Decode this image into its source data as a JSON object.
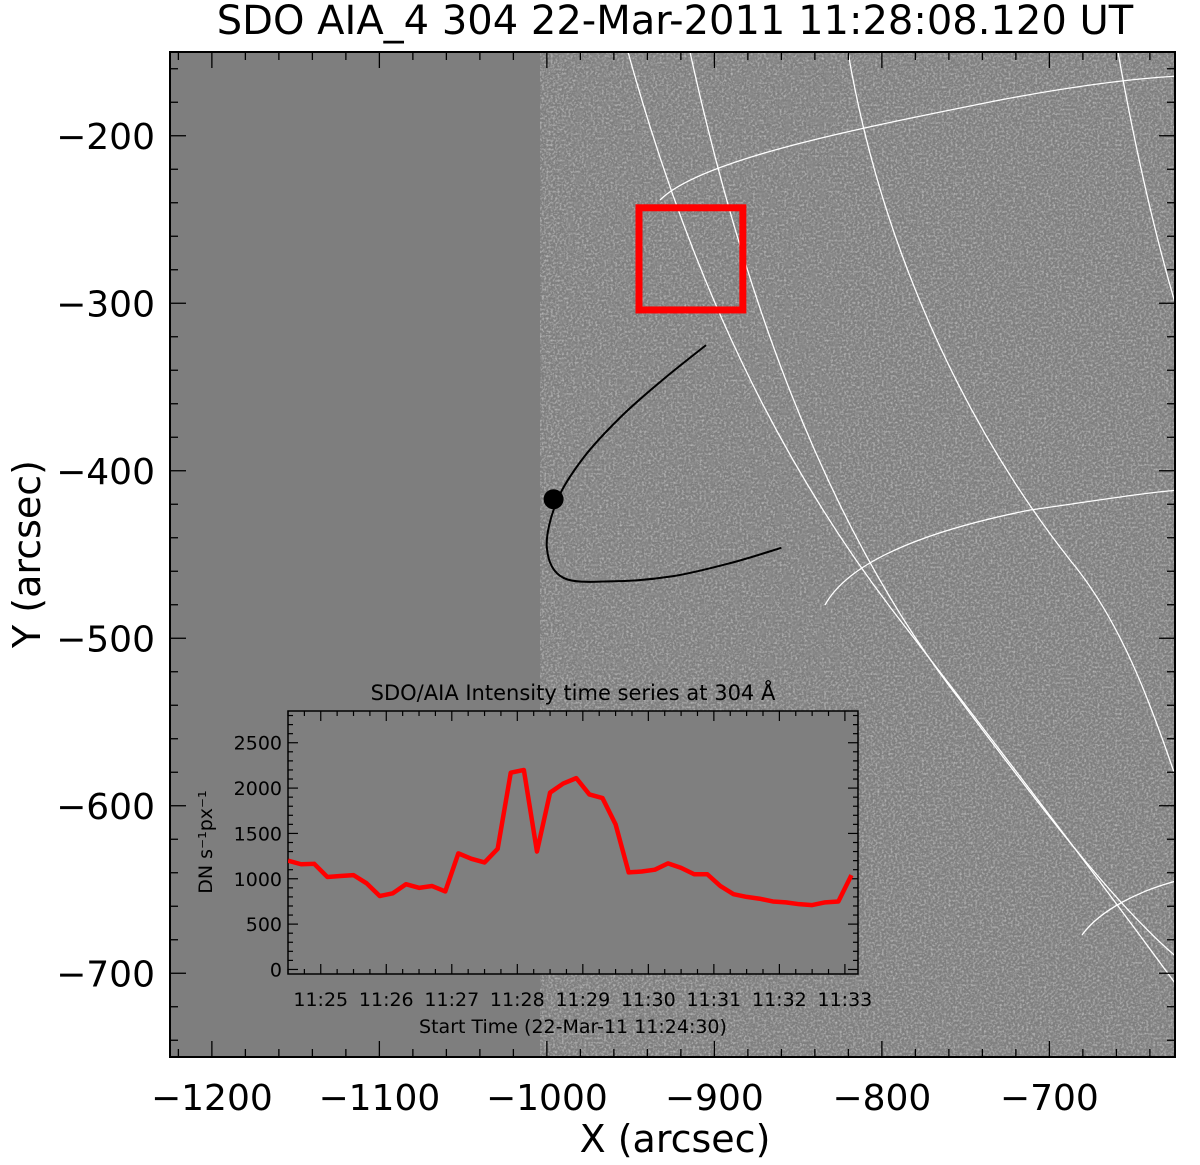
{
  "chart_data": [
    {
      "type": "heatmap",
      "title": "SDO AIA_4 304 22-Mar-2011 11:28:08.120 UT",
      "xlabel": "X (arcsec)",
      "ylabel": "Y (arcsec)",
      "xlim": [
        -1225,
        -625
      ],
      "ylim": [
        -750,
        -150
      ],
      "xticks": [
        -1200,
        -1100,
        -1000,
        -900,
        -800,
        -700
      ],
      "xtick_labels": [
        "−1200",
        "−1100",
        "−1000",
        "−900",
        "−800",
        "−700"
      ],
      "yticks": [
        -200,
        -300,
        -400,
        -500,
        -600,
        -700
      ],
      "ytick_labels": [
        "−200",
        "−300",
        "−400",
        "−500",
        "−600",
        "−700"
      ],
      "colormap": "grayscale difference image",
      "grid": "heliographic lat/lon lines (white)",
      "annotations": {
        "box": {
          "x0": -945,
          "x1": -883,
          "y0": -304,
          "y1": -243,
          "color": "#ff0000"
        },
        "trajectory": [
          [
            -905,
            -325
          ],
          [
            -930,
            -345
          ],
          [
            -955,
            -367
          ],
          [
            -978,
            -392
          ],
          [
            -994,
            -418
          ],
          [
            -1000,
            -446
          ],
          [
            -990,
            -464
          ],
          [
            -960,
            -466
          ],
          [
            -925,
            -463
          ],
          [
            -890,
            -455
          ],
          [
            -860,
            -446
          ]
        ],
        "marker": {
          "x": -996,
          "y": -417
        }
      }
    },
    {
      "type": "line",
      "title": "SDO/AIA Intensity time series at 304 Å",
      "xlabel": "Start Time (22-Mar-11 11:24:30)",
      "ylabel": "DN s⁻¹px⁻¹",
      "xtick_labels": [
        "11:25",
        "11:26",
        "11:27",
        "11:28",
        "11:29",
        "11:30",
        "11:31",
        "11:32",
        "11:33"
      ],
      "yticks": [
        0,
        500,
        1000,
        1500,
        2000,
        2500
      ],
      "ylim": [
        -50,
        2850
      ],
      "series": [
        {
          "color": "#ff0000",
          "x": [
            "11:24:30",
            "11:24:42",
            "11:24:54",
            "11:25:06",
            "11:25:18",
            "11:25:30",
            "11:25:42",
            "11:25:54",
            "11:26:06",
            "11:26:18",
            "11:26:30",
            "11:26:42",
            "11:26:54",
            "11:27:06",
            "11:27:18",
            "11:27:30",
            "11:27:42",
            "11:27:54",
            "11:28:06",
            "11:28:18",
            "11:28:30",
            "11:28:42",
            "11:28:54",
            "11:29:06",
            "11:29:18",
            "11:29:30",
            "11:29:42",
            "11:29:54",
            "11:30:06",
            "11:30:18",
            "11:30:30",
            "11:30:42",
            "11:30:54",
            "11:31:06",
            "11:31:18",
            "11:31:30",
            "11:31:42",
            "11:31:54",
            "11:32:06",
            "11:32:18",
            "11:32:30",
            "11:32:42",
            "11:32:54",
            "11:33:06"
          ],
          "values": [
            1200,
            1160,
            1165,
            1020,
            1030,
            1040,
            950,
            810,
            840,
            940,
            900,
            920,
            860,
            1280,
            1220,
            1180,
            1330,
            2170,
            2200,
            1300,
            1950,
            2050,
            2110,
            1930,
            1890,
            1600,
            1070,
            1080,
            1100,
            1170,
            1120,
            1050,
            1050,
            920,
            830,
            800,
            780,
            750,
            740,
            720,
            710,
            740,
            750,
            1040
          ]
        }
      ]
    }
  ]
}
